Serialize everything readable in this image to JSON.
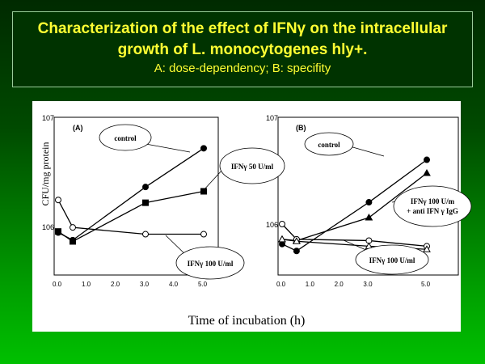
{
  "title": {
    "line1": "Characterization of the effect of IFNγ on the intracellular",
    "line2": "growth of L. monocytogenes hly+.",
    "line3": "A: dose-dependency; B: specifity"
  },
  "chart_data": [
    {
      "type": "line",
      "panel": "(A)",
      "ylabel": "CFU/mg protein",
      "xlabel": "Time of incubation (h)",
      "yscale": "log",
      "ylim": [
        400000,
        10000000
      ],
      "xlim": [
        0,
        5
      ],
      "yticks": [
        "10^7",
        "10^6"
      ],
      "xticks": [
        "0.0",
        "1.0",
        "2.0",
        "3.0",
        "4.0",
        "5.0"
      ],
      "series": [
        {
          "name": "control",
          "marker": "filled-circle",
          "x": [
            0,
            0.5,
            3,
            5
          ],
          "values": [
            880000,
            750000,
            2300000,
            5200000
          ]
        },
        {
          "name": "IFNγ 50 U/ml",
          "marker": "filled-square",
          "x": [
            0,
            0.5,
            3,
            5
          ],
          "values": [
            900000,
            730000,
            1650000,
            2100000
          ]
        },
        {
          "name": "IFNγ 100 U/ml",
          "marker": "open-circle",
          "x": [
            0,
            0.5,
            3,
            5
          ],
          "values": [
            1750000,
            980000,
            850000,
            850000
          ]
        }
      ]
    },
    {
      "type": "line",
      "panel": "(B)",
      "yscale": "log",
      "ylim": [
        400000,
        10000000
      ],
      "xlim": [
        0,
        5
      ],
      "yticks": [
        "10^7",
        "10^6"
      ],
      "xticks": [
        "0.0",
        "1.0",
        "2.0",
        "3.0"
      ],
      "series": [
        {
          "name": "control",
          "marker": "filled-circle",
          "x": [
            0,
            0.5,
            3,
            5
          ],
          "values": [
            650000,
            560000,
            1600000,
            4000000
          ]
        },
        {
          "name": "IFNγ 100 U/ml + anti IFN γ IgG",
          "marker": "filled-triangle",
          "x": [
            0,
            0.5,
            3,
            5
          ],
          "values": [
            720000,
            700000,
            1150000,
            3000000
          ]
        },
        {
          "name": "IFNγ 100 U/ml",
          "marker": "open-circle",
          "x": [
            0,
            0.5,
            3,
            5
          ],
          "values": [
            1000000,
            720000,
            700000,
            620000
          ]
        },
        {
          "name": "IFNγ 100 U/ml (triangle)",
          "marker": "open-triangle",
          "x": [
            0,
            0.5,
            3,
            5
          ],
          "values": [
            720000,
            690000,
            620000,
            580000
          ]
        }
      ]
    }
  ],
  "labels": {
    "a_control": "control",
    "a_50": "IFNγ 50 U/ml",
    "a_100": "IFNγ  100 U/ml",
    "b_control": "control",
    "b_anti1": "IFNγ  100 U/m",
    "b_anti2": "+ anti IFN γ IgG",
    "b_100": "IFNγ  100 U/ml",
    "xticks_b_last": "5.0"
  }
}
